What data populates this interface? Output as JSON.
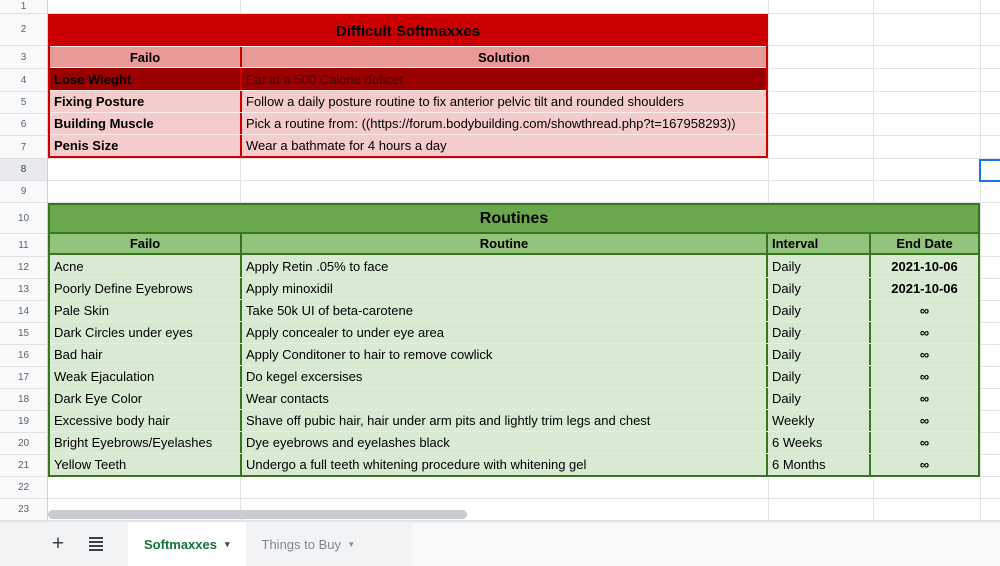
{
  "grid": {
    "first_row": 1,
    "last_row": 23,
    "highlighted_row": 8
  },
  "colors": {
    "red-title": "#cc0000",
    "red-border": "#cc0000",
    "red-header": "#ea9999",
    "red-row": "#f4cccc",
    "red-done": "#990000",
    "green-title": "#6aa84f",
    "green-border": "#38761d",
    "green-header": "#93c47d",
    "green-row": "#d9ead3",
    "selection": "#1a73e8",
    "tab-active": "#137333"
  },
  "tables": {
    "difficult": {
      "title": "Difficult Softmaxxes",
      "columns": [
        "Failo",
        "Solution"
      ],
      "rows": [
        {
          "failo": "Lose Wieght",
          "solution": "Eat at a 500 Calorie deficet",
          "done": true
        },
        {
          "failo": "Fixing Posture",
          "solution": "Follow a daily posture routine to fix anterior pelvic tilt and rounded shoulders",
          "done": false
        },
        {
          "failo": "Building Muscle",
          "solution": "Pick a routine from: ((https://forum.bodybuilding.com/showthread.php?t=167958293))",
          "done": false
        },
        {
          "failo": "Penis Size",
          "solution": "Wear a bathmate for 4 hours a day",
          "done": false
        }
      ]
    },
    "routines": {
      "title": "Routines",
      "columns": [
        "Failo",
        "Routine",
        "Interval",
        "End Date"
      ],
      "rows": [
        {
          "failo": "Acne",
          "routine": "Apply Retin .05% to face",
          "interval": "Daily",
          "end_date": "2021-10-06"
        },
        {
          "failo": "Poorly Define Eyebrows",
          "routine": "Apply minoxidil",
          "interval": "Daily",
          "end_date": "2021-10-06"
        },
        {
          "failo": "Pale Skin",
          "routine": "Take 50k UI of beta-carotene",
          "interval": "Daily",
          "end_date": "∞"
        },
        {
          "failo": "Dark Circles under eyes",
          "routine": "Apply concealer to under eye area",
          "interval": "Daily",
          "end_date": "∞"
        },
        {
          "failo": "Bad hair",
          "routine": "Apply Conditoner to hair to remove cowlick",
          "interval": "Daily",
          "end_date": "∞"
        },
        {
          "failo": "Weak Ejaculation",
          "routine": "Do kegel excersises",
          "interval": "Daily",
          "end_date": "∞"
        },
        {
          "failo": "Dark Eye Color",
          "routine": "Wear contacts",
          "interval": "Daily",
          "end_date": "∞"
        },
        {
          "failo": "Excessive body hair",
          "routine": "Shave off pubic hair, hair under arm pits and lightly trim legs and chest",
          "interval": "Weekly",
          "end_date": "∞"
        },
        {
          "failo": "Bright Eyebrows/Eyelashes",
          "routine": "Dye eyebrows and eyelashes black",
          "interval": "6 Weeks",
          "end_date": "∞"
        },
        {
          "failo": "Yellow Teeth",
          "routine": "Undergo a full teeth whitening procedure with whitening gel",
          "interval": "6 Months",
          "end_date": "∞"
        }
      ]
    }
  },
  "tabbar": {
    "icons": {
      "add_sheet": "+",
      "tab_dropdown": "▾"
    },
    "tabs": [
      {
        "label": "Softmaxxes",
        "active": true
      },
      {
        "label": "Things to Buy",
        "active": false
      }
    ]
  }
}
